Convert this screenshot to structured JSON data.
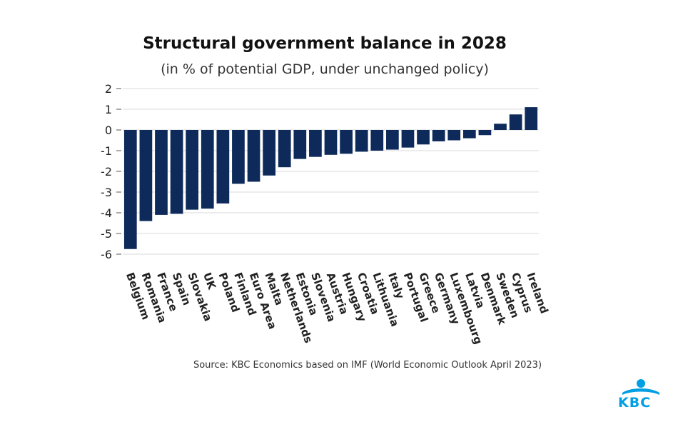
{
  "chart_data": {
    "type": "bar",
    "title": "Structural government balance in 2028",
    "subtitle": "(in % of potential GDP, under unchanged policy)",
    "xlabel": "",
    "ylabel": "",
    "ylim": [
      -6,
      2
    ],
    "yticks": [
      2,
      1,
      0,
      -1,
      -2,
      -3,
      -4,
      -5,
      -6
    ],
    "grid": true,
    "bar_color": "#0d2a5a",
    "categories": [
      "Belgium",
      "Romania",
      "France",
      "Spain",
      "Slovakia",
      "UK",
      "Poland",
      "Finland",
      "Euro Area",
      "Malta",
      "Netherlands",
      "Estonia",
      "Slovenia",
      "Austria",
      "Hungary",
      "Croatia",
      "Lithuania",
      "Italy",
      "Portugal",
      "Greece",
      "Germany",
      "Luxembourg",
      "Latvia",
      "Denmark",
      "Sweden",
      "Cyprus",
      "Ireland"
    ],
    "values": [
      -5.75,
      -4.4,
      -4.1,
      -4.05,
      -3.85,
      -3.8,
      -3.55,
      -2.6,
      -2.5,
      -2.2,
      -1.8,
      -1.4,
      -1.3,
      -1.2,
      -1.15,
      -1.05,
      -1.0,
      -0.95,
      -0.85,
      -0.7,
      -0.55,
      -0.5,
      -0.4,
      -0.25,
      0.3,
      0.75,
      1.1
    ]
  },
  "footer": {
    "source": "Source: KBC Economics based on IMF (World Economic Outlook April 2023)",
    "logo_text": "KBC"
  },
  "colors": {
    "bar": "#0d2a5a",
    "logo": "#009fe3"
  }
}
